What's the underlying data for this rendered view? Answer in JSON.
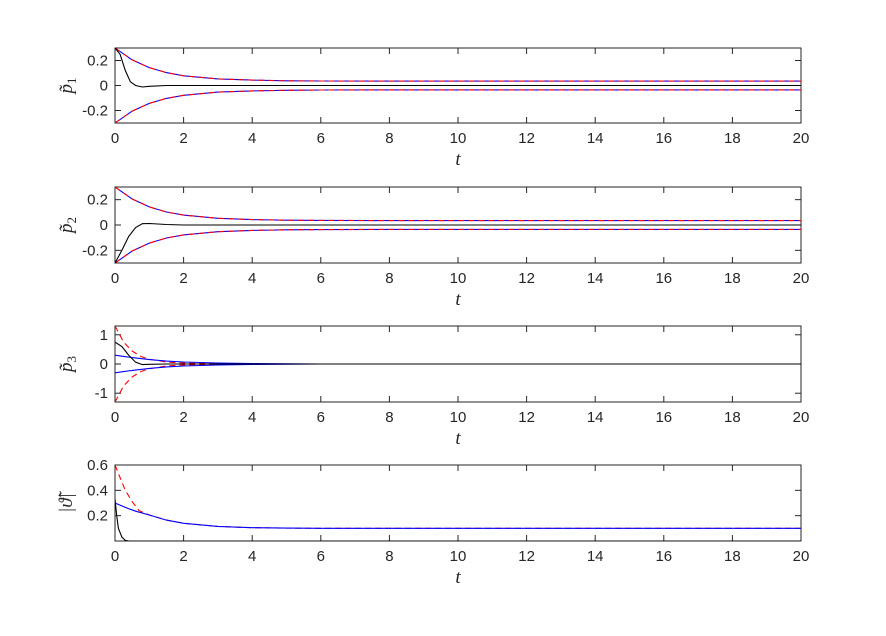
{
  "chart_data": [
    {
      "type": "line",
      "ylabel": "p̃",
      "ylabel_sub": "1",
      "xlabel": "t",
      "xlim": [
        0,
        20
      ],
      "ylim": [
        -0.3,
        0.3
      ],
      "xticks": [
        "0",
        "2",
        "4",
        "6",
        "8",
        "10",
        "12",
        "14",
        "16",
        "18",
        "20"
      ],
      "yticks": [
        {
          "v": 0.2,
          "label": "0.2"
        },
        {
          "v": 0,
          "label": "0"
        },
        {
          "v": -0.2,
          "label": "-0.2"
        }
      ],
      "series": [
        {
          "color": "#0000ff",
          "dash": "none",
          "x": [
            0,
            0.5,
            1,
            1.5,
            2,
            3,
            4,
            5,
            6,
            8,
            10,
            14,
            20
          ],
          "y": [
            0.3,
            0.205,
            0.143,
            0.103,
            0.078,
            0.053,
            0.043,
            0.038,
            0.036,
            0.035,
            0.035,
            0.035,
            0.035
          ]
        },
        {
          "color": "#ff0000",
          "dash": "6,4",
          "x": [
            0,
            0.5,
            1,
            1.5,
            2,
            3,
            4,
            5,
            6,
            8,
            10,
            14,
            20
          ],
          "y": [
            0.3,
            0.205,
            0.143,
            0.103,
            0.078,
            0.053,
            0.043,
            0.038,
            0.036,
            0.035,
            0.035,
            0.035,
            0.035
          ]
        },
        {
          "color": "#0000ff",
          "dash": "none",
          "x": [
            0,
            0.5,
            1,
            1.5,
            2,
            3,
            4,
            5,
            6,
            8,
            10,
            14,
            20
          ],
          "y": [
            -0.3,
            -0.205,
            -0.143,
            -0.103,
            -0.078,
            -0.053,
            -0.043,
            -0.038,
            -0.036,
            -0.035,
            -0.035,
            -0.035,
            -0.035
          ]
        },
        {
          "color": "#ff0000",
          "dash": "6,4",
          "x": [
            0,
            0.5,
            1,
            1.5,
            2,
            3,
            4,
            5,
            6,
            8,
            10,
            14,
            20
          ],
          "y": [
            -0.3,
            -0.205,
            -0.143,
            -0.103,
            -0.078,
            -0.053,
            -0.043,
            -0.038,
            -0.036,
            -0.035,
            -0.035,
            -0.035,
            -0.035
          ]
        },
        {
          "color": "#000000",
          "dash": "none",
          "x": [
            0,
            0.15,
            0.3,
            0.45,
            0.6,
            0.8,
            1,
            1.5,
            2,
            3,
            4,
            6,
            10,
            20
          ],
          "y": [
            0.3,
            0.25,
            0.12,
            0.03,
            0.0,
            -0.012,
            -0.006,
            0.0,
            0.0,
            0.0,
            0.0,
            0.0,
            0.0,
            0.0
          ]
        }
      ]
    },
    {
      "type": "line",
      "ylabel": "p̃",
      "ylabel_sub": "2",
      "xlabel": "t",
      "xlim": [
        0,
        20
      ],
      "ylim": [
        -0.3,
        0.3
      ],
      "xticks": [
        "0",
        "2",
        "4",
        "6",
        "8",
        "10",
        "12",
        "14",
        "16",
        "18",
        "20"
      ],
      "yticks": [
        {
          "v": 0.2,
          "label": "0.2"
        },
        {
          "v": 0,
          "label": "0"
        },
        {
          "v": -0.2,
          "label": "-0.2"
        }
      ],
      "series": [
        {
          "color": "#0000ff",
          "dash": "none",
          "x": [
            0,
            0.5,
            1,
            1.5,
            2,
            3,
            4,
            5,
            6,
            8,
            10,
            14,
            20
          ],
          "y": [
            0.3,
            0.205,
            0.143,
            0.103,
            0.078,
            0.053,
            0.043,
            0.038,
            0.036,
            0.035,
            0.035,
            0.035,
            0.035
          ]
        },
        {
          "color": "#ff0000",
          "dash": "6,4",
          "x": [
            0,
            0.5,
            1,
            1.5,
            2,
            3,
            4,
            5,
            6,
            8,
            10,
            14,
            20
          ],
          "y": [
            0.3,
            0.205,
            0.143,
            0.103,
            0.078,
            0.053,
            0.043,
            0.038,
            0.036,
            0.035,
            0.035,
            0.035,
            0.035
          ]
        },
        {
          "color": "#0000ff",
          "dash": "none",
          "x": [
            0,
            0.5,
            1,
            1.5,
            2,
            3,
            4,
            5,
            6,
            8,
            10,
            14,
            20
          ],
          "y": [
            -0.3,
            -0.205,
            -0.143,
            -0.103,
            -0.078,
            -0.053,
            -0.043,
            -0.038,
            -0.036,
            -0.035,
            -0.035,
            -0.035,
            -0.035
          ]
        },
        {
          "color": "#ff0000",
          "dash": "6,4",
          "x": [
            0,
            0.5,
            1,
            1.5,
            2,
            3,
            4,
            5,
            6,
            8,
            10,
            14,
            20
          ],
          "y": [
            -0.3,
            -0.205,
            -0.143,
            -0.103,
            -0.078,
            -0.053,
            -0.043,
            -0.038,
            -0.036,
            -0.035,
            -0.035,
            -0.035,
            -0.035
          ]
        },
        {
          "color": "#000000",
          "dash": "none",
          "x": [
            0,
            0.2,
            0.4,
            0.6,
            0.8,
            1,
            1.5,
            2,
            3,
            4,
            6,
            10,
            20
          ],
          "y": [
            -0.3,
            -0.2,
            -0.09,
            -0.02,
            0.01,
            0.012,
            0.004,
            0.0,
            0.0,
            0.0,
            0.0,
            0.0,
            0.0
          ]
        }
      ]
    },
    {
      "type": "line",
      "ylabel": "p̃",
      "ylabel_sub": "3",
      "xlabel": "t",
      "xlim": [
        0,
        20
      ],
      "ylim": [
        -1.3,
        1.3
      ],
      "xticks": [
        "0",
        "2",
        "4",
        "6",
        "8",
        "10",
        "12",
        "14",
        "16",
        "18",
        "20"
      ],
      "yticks": [
        {
          "v": 1,
          "label": "1"
        },
        {
          "v": 0,
          "label": "0"
        },
        {
          "v": -1,
          "label": "-1"
        }
      ],
      "series": [
        {
          "color": "#ff0000",
          "dash": "6,4",
          "x": [
            0,
            0.25,
            0.5,
            0.75,
            1,
            1.5,
            2,
            3,
            4,
            6,
            10,
            20
          ],
          "y": [
            1.3,
            0.75,
            0.44,
            0.26,
            0.16,
            0.07,
            0.035,
            0.01,
            0.0,
            0.0,
            0.0,
            0.0
          ]
        },
        {
          "color": "#ff0000",
          "dash": "6,4",
          "x": [
            0,
            0.25,
            0.5,
            0.75,
            1,
            1.5,
            2,
            3,
            4,
            6,
            10,
            20
          ],
          "y": [
            -1.3,
            -0.75,
            -0.44,
            -0.26,
            -0.16,
            -0.07,
            -0.035,
            -0.01,
            0.0,
            0.0,
            0.0,
            0.0
          ]
        },
        {
          "color": "#0000ff",
          "dash": "none",
          "x": [
            0,
            0.5,
            1,
            1.5,
            2,
            3,
            4,
            6,
            10,
            20
          ],
          "y": [
            0.3,
            0.22,
            0.15,
            0.1,
            0.07,
            0.035,
            0.015,
            0.0,
            0.0,
            0.0
          ]
        },
        {
          "color": "#0000ff",
          "dash": "none",
          "x": [
            0,
            0.5,
            1,
            1.5,
            2,
            3,
            4,
            6,
            10,
            20
          ],
          "y": [
            -0.3,
            -0.22,
            -0.15,
            -0.1,
            -0.07,
            -0.035,
            -0.015,
            0.0,
            0.0,
            0.0
          ]
        },
        {
          "color": "#000000",
          "dash": "none",
          "x": [
            0,
            0.2,
            0.4,
            0.6,
            0.8,
            1,
            1.5,
            2,
            3,
            4,
            6,
            10,
            20
          ],
          "y": [
            0.75,
            0.6,
            0.3,
            0.06,
            -0.02,
            -0.01,
            0.0,
            0.0,
            0.0,
            0.0,
            0.0,
            0.0,
            0.0
          ]
        }
      ]
    },
    {
      "type": "line",
      "ylabel": "|ϑ̃|",
      "ylabel_sub": "",
      "xlabel": "t",
      "xlim": [
        0,
        20
      ],
      "ylim": [
        0,
        0.6
      ],
      "xticks": [
        "0",
        "2",
        "4",
        "6",
        "8",
        "10",
        "12",
        "14",
        "16",
        "18",
        "20"
      ],
      "yticks": [
        {
          "v": 0.6,
          "label": "0.6"
        },
        {
          "v": 0.4,
          "label": "0.4"
        },
        {
          "v": 0.2,
          "label": "0.2"
        }
      ],
      "series": [
        {
          "color": "#ff0000",
          "dash": "6,4",
          "x": [
            0,
            0.15,
            0.3,
            0.5,
            0.7,
            1,
            1.5,
            2,
            3,
            4,
            5,
            6,
            8,
            10,
            20
          ],
          "y": [
            0.6,
            0.5,
            0.4,
            0.31,
            0.24,
            0.205,
            0.165,
            0.14,
            0.115,
            0.105,
            0.102,
            0.1,
            0.1,
            0.1,
            0.1
          ]
        },
        {
          "color": "#0000ff",
          "dash": "none",
          "x": [
            0,
            0.3,
            0.6,
            1,
            1.5,
            2,
            3,
            4,
            5,
            6,
            8,
            10,
            20
          ],
          "y": [
            0.3,
            0.265,
            0.235,
            0.205,
            0.165,
            0.14,
            0.115,
            0.105,
            0.102,
            0.1,
            0.1,
            0.1,
            0.1
          ]
        },
        {
          "color": "#000000",
          "dash": "none",
          "x": [
            0,
            0.05,
            0.1,
            0.2,
            0.3,
            0.4,
            0.6,
            1,
            20
          ],
          "y": [
            0.33,
            0.2,
            0.1,
            0.03,
            0.005,
            0.0,
            0.0,
            0.0,
            0.0
          ]
        }
      ]
    }
  ]
}
